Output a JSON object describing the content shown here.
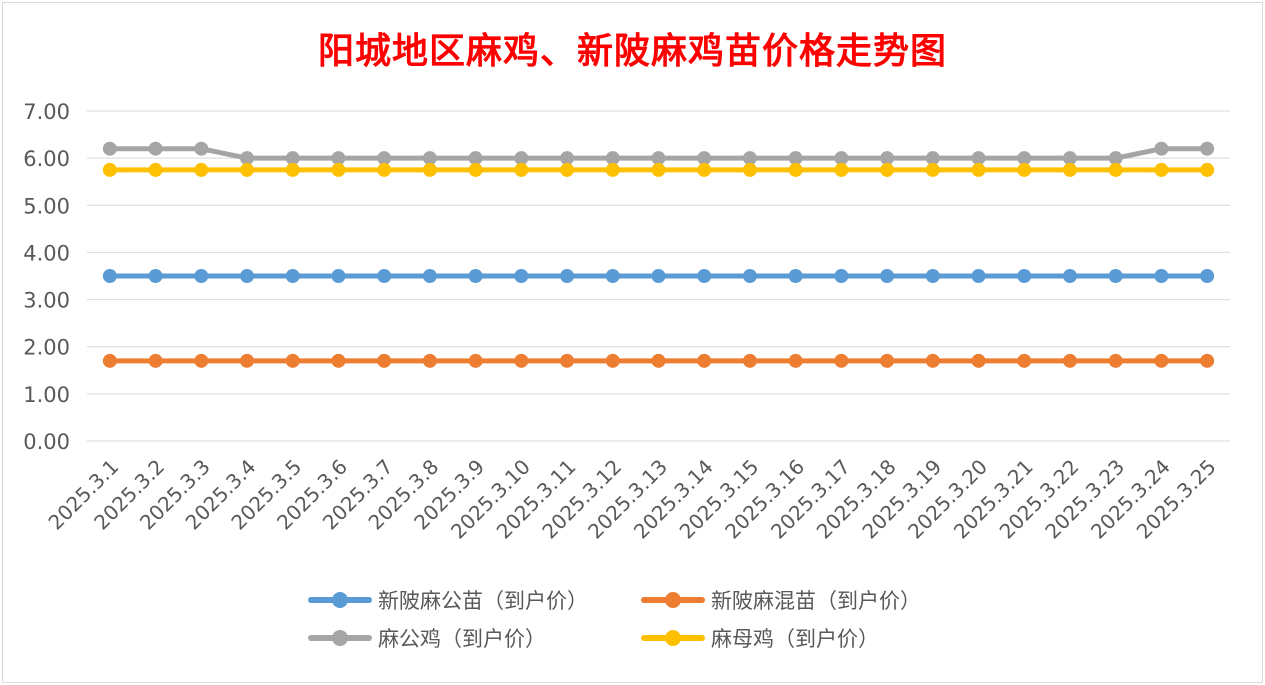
{
  "chart_data": {
    "type": "line",
    "title": "阳城地区麻鸡、新陂麻鸡苗价格走势图",
    "categories": [
      "2025.3.1",
      "2025.3.2",
      "2025.3.3",
      "2025.3.4",
      "2025.3.5",
      "2025.3.6",
      "2025.3.7",
      "2025.3.8",
      "2025.3.9",
      "2025.3.10",
      "2025.3.11",
      "2025.3.12",
      "2025.3.13",
      "2025.3.14",
      "2025.3.15",
      "2025.3.16",
      "2025.3.17",
      "2025.3.18",
      "2025.3.19",
      "2025.3.20",
      "2025.3.21",
      "2025.3.22",
      "2025.3.23",
      "2025.3.24",
      "2025.3.25"
    ],
    "ylim": [
      0,
      7
    ],
    "yticks": [
      "0.00",
      "1.00",
      "2.00",
      "3.00",
      "4.00",
      "5.00",
      "6.00",
      "7.00"
    ],
    "grid": true,
    "legend_position": "bottom",
    "series": [
      {
        "name": "新陂麻公苗（到户价）",
        "color": "#5b9bd5",
        "values": [
          3.5,
          3.5,
          3.5,
          3.5,
          3.5,
          3.5,
          3.5,
          3.5,
          3.5,
          3.5,
          3.5,
          3.5,
          3.5,
          3.5,
          3.5,
          3.5,
          3.5,
          3.5,
          3.5,
          3.5,
          3.5,
          3.5,
          3.5,
          3.5,
          3.5
        ]
      },
      {
        "name": "新陂麻混苗（到户价）",
        "color": "#ed7d31",
        "values": [
          1.7,
          1.7,
          1.7,
          1.7,
          1.7,
          1.7,
          1.7,
          1.7,
          1.7,
          1.7,
          1.7,
          1.7,
          1.7,
          1.7,
          1.7,
          1.7,
          1.7,
          1.7,
          1.7,
          1.7,
          1.7,
          1.7,
          1.7,
          1.7,
          1.7
        ]
      },
      {
        "name": "麻公鸡（到户价）",
        "color": "#a5a5a5",
        "values": [
          6.2,
          6.2,
          6.2,
          6.0,
          6.0,
          6.0,
          6.0,
          6.0,
          6.0,
          6.0,
          6.0,
          6.0,
          6.0,
          6.0,
          6.0,
          6.0,
          6.0,
          6.0,
          6.0,
          6.0,
          6.0,
          6.0,
          6.0,
          6.2,
          6.2
        ]
      },
      {
        "name": "麻母鸡（到户价）",
        "color": "#ffc000",
        "values": [
          5.75,
          5.75,
          5.75,
          5.75,
          5.75,
          5.75,
          5.75,
          5.75,
          5.75,
          5.75,
          5.75,
          5.75,
          5.75,
          5.75,
          5.75,
          5.75,
          5.75,
          5.75,
          5.75,
          5.75,
          5.75,
          5.75,
          5.75,
          5.75,
          5.75
        ]
      }
    ]
  }
}
